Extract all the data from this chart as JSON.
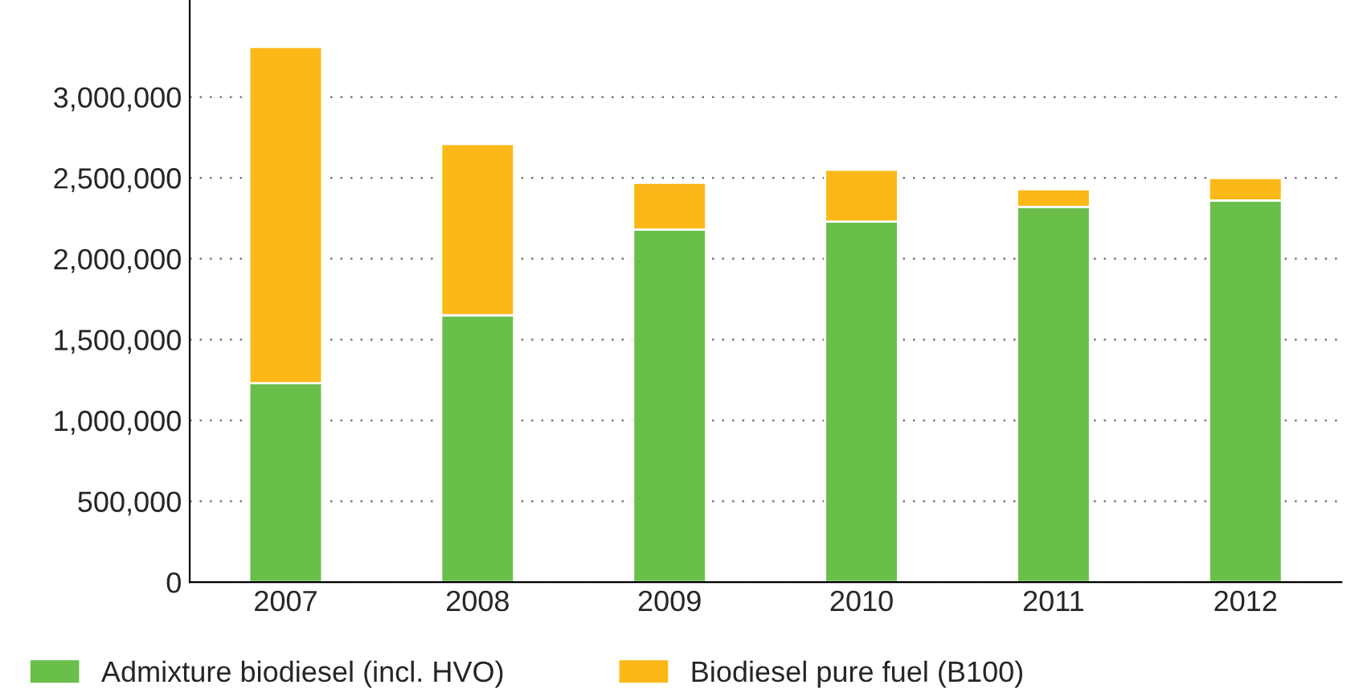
{
  "chart_data": {
    "type": "bar",
    "stacked": true,
    "categories": [
      "2007",
      "2008",
      "2009",
      "2010",
      "2011",
      "2012"
    ],
    "series": [
      {
        "name": "Admixture biodiesel (incl. HVO)",
        "color": "#6abf4b",
        "values": [
          1230000,
          1650000,
          2180000,
          2230000,
          2320000,
          2360000
        ]
      },
      {
        "name": "Biodiesel pure fuel (B100)",
        "color": "#fbb818",
        "values": [
          2080000,
          1060000,
          290000,
          320000,
          110000,
          140000
        ]
      }
    ],
    "ylim": [
      0,
      3600000
    ],
    "yticks": [
      {
        "value": 0,
        "label": "0"
      },
      {
        "value": 500000,
        "label": "500,000"
      },
      {
        "value": 1000000,
        "label": "1,000,000"
      },
      {
        "value": 1500000,
        "label": "1,500,000"
      },
      {
        "value": 2000000,
        "label": "2,000,000"
      },
      {
        "value": 2500000,
        "label": "2,500,000"
      },
      {
        "value": 3000000,
        "label": "3,000,000"
      }
    ],
    "grid": "y",
    "legend": "bottom"
  }
}
